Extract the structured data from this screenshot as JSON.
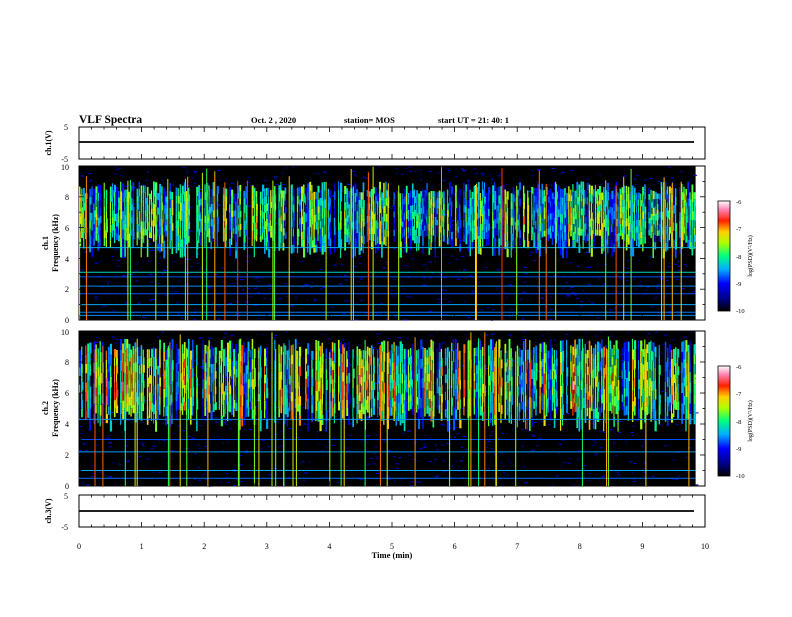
{
  "header": {
    "title": "VLF Spectra",
    "date": "Oct. 2  , 2020",
    "station": "station= MOS",
    "start": "start  UT  =   21: 40: 1"
  },
  "panels": {
    "ch1_voltage": {
      "ylabel": "ch.1(V)",
      "ticks": [
        "5",
        "-5"
      ]
    },
    "ch1_spectrogram": {
      "ylabel_line1": "ch.1",
      "ylabel_line2": "Frequency (kHz)",
      "ticks": [
        "0",
        "2",
        "4",
        "6",
        "8",
        "10"
      ]
    },
    "ch2_spectrogram": {
      "ylabel_line1": "ch.2",
      "ylabel_line2": "Frequency (kHz)",
      "ticks": [
        "0",
        "2",
        "4",
        "6",
        "8",
        "10"
      ]
    },
    "ch3_voltage": {
      "ylabel": "ch.3(V)",
      "ticks": [
        "5",
        "-5"
      ]
    }
  },
  "xaxis": {
    "label": "Time  (min)",
    "ticks": [
      "0",
      "1",
      "2",
      "3",
      "4",
      "5",
      "6",
      "7",
      "8",
      "9",
      "10"
    ]
  },
  "colorbar": {
    "label": "log(PSD)(V²/Hz)",
    "ticks": [
      "-6",
      "-7",
      "-8",
      "-9",
      "-10"
    ]
  },
  "chart_data": {
    "type": "heatmap",
    "title": "VLF Spectra",
    "xlabel": "Time  (min)",
    "xlim": [
      0,
      10
    ],
    "data_end_min": 9.85,
    "colormap": [
      "#000000",
      "#000080",
      "#0000ff",
      "#00c0ff",
      "#00ff80",
      "#ffff00",
      "#ff8000",
      "#ff0000",
      "#ff80c0",
      "#ffffff"
    ],
    "colorbar_range": [
      -10,
      -6
    ],
    "panels": [
      {
        "name": "ch.1(V)",
        "type": "line",
        "ylim": [
          -5,
          5
        ],
        "value": 0
      },
      {
        "name": "ch.1",
        "type": "heatmap",
        "ylabel": "Frequency (kHz)",
        "ylim": [
          0,
          10
        ],
        "band_khz": [
          4,
          9
        ],
        "band_log_psd": -8.5,
        "narrowband_lines_khz": [
          0.3,
          0.5,
          1.0,
          1.7,
          2.2,
          2.8,
          3.1,
          4.7
        ]
      },
      {
        "name": "ch.2",
        "type": "heatmap",
        "ylabel": "Frequency (kHz)",
        "ylim": [
          0,
          10
        ],
        "band_khz": [
          3.5,
          9.5
        ],
        "band_log_psd": -7.5,
        "peak_khz": 6.5,
        "narrowband_lines_khz": [
          0.5,
          1.0,
          2.2,
          3.0,
          4.3
        ]
      },
      {
        "name": "ch.3(V)",
        "type": "line",
        "ylim": [
          -5,
          5
        ],
        "value": 0
      }
    ]
  }
}
